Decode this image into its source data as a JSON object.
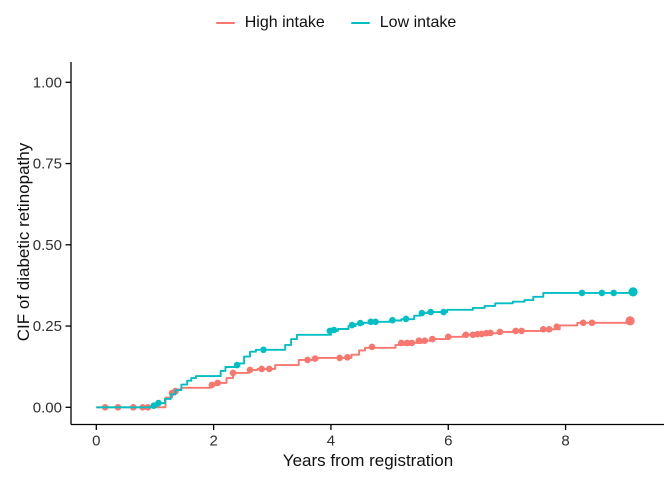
{
  "chart_data": {
    "type": "line",
    "subtype": "step-cumulative-incidence",
    "title": "",
    "xlabel": "Years from registration",
    "ylabel": "CIF of diabetic retinopathy",
    "xlim": [
      0,
      9.2
    ],
    "ylim": [
      0,
      1.0
    ],
    "x_ticks": [
      0,
      2,
      4,
      6,
      8
    ],
    "y_ticks": [
      0,
      0.25,
      0.5,
      0.75,
      1.0
    ],
    "y_tick_labels": [
      "0.00",
      "0.25",
      "0.50",
      "0.75",
      "1.00"
    ],
    "grid": false,
    "legend_position": "top-center",
    "axis_color": "#000000",
    "series": [
      {
        "name": "High intake",
        "color": "#F8766D",
        "steps": [
          [
            0,
            0
          ],
          [
            1.18,
            0.03
          ],
          [
            1.29,
            0.044
          ],
          [
            1.38,
            0.055
          ],
          [
            1.45,
            0.06
          ],
          [
            1.95,
            0.069
          ],
          [
            2.07,
            0.075
          ],
          [
            2.22,
            0.09
          ],
          [
            2.33,
            0.106
          ],
          [
            2.6,
            0.115
          ],
          [
            2.75,
            0.118
          ],
          [
            3.05,
            0.13
          ],
          [
            3.45,
            0.146
          ],
          [
            3.75,
            0.152
          ],
          [
            4.35,
            0.162
          ],
          [
            4.48,
            0.175
          ],
          [
            4.58,
            0.183
          ],
          [
            5.1,
            0.192
          ],
          [
            5.3,
            0.198
          ],
          [
            5.55,
            0.205
          ],
          [
            5.75,
            0.21
          ],
          [
            6.0,
            0.217
          ],
          [
            6.25,
            0.223
          ],
          [
            6.6,
            0.228
          ],
          [
            6.85,
            0.232
          ],
          [
            7.1,
            0.235
          ],
          [
            7.6,
            0.24
          ],
          [
            7.9,
            0.252
          ],
          [
            8.2,
            0.26
          ],
          [
            9.1,
            0.266
          ]
        ],
        "censor_marks": [
          [
            0.15,
            0
          ],
          [
            0.37,
            0
          ],
          [
            0.63,
            0
          ],
          [
            0.79,
            0
          ],
          [
            0.88,
            0
          ],
          [
            1.29,
            0.044
          ],
          [
            1.35,
            0.05
          ],
          [
            1.97,
            0.069
          ],
          [
            2.07,
            0.075
          ],
          [
            2.33,
            0.106
          ],
          [
            2.62,
            0.115
          ],
          [
            2.82,
            0.118
          ],
          [
            2.95,
            0.118
          ],
          [
            3.6,
            0.146
          ],
          [
            3.73,
            0.15
          ],
          [
            4.15,
            0.152
          ],
          [
            4.28,
            0.154
          ],
          [
            4.7,
            0.186
          ],
          [
            5.2,
            0.198
          ],
          [
            5.3,
            0.198
          ],
          [
            5.38,
            0.198
          ],
          [
            5.5,
            0.205
          ],
          [
            5.6,
            0.205
          ],
          [
            5.73,
            0.21
          ],
          [
            6.0,
            0.217
          ],
          [
            6.3,
            0.223
          ],
          [
            6.42,
            0.223
          ],
          [
            6.5,
            0.225
          ],
          [
            6.57,
            0.226
          ],
          [
            6.65,
            0.228
          ],
          [
            6.72,
            0.229
          ],
          [
            6.88,
            0.232
          ],
          [
            7.15,
            0.235
          ],
          [
            7.25,
            0.235
          ],
          [
            7.62,
            0.24
          ],
          [
            7.72,
            0.24
          ],
          [
            7.85,
            0.248
          ],
          [
            8.3,
            0.26
          ],
          [
            8.45,
            0.26
          ]
        ],
        "endpoint": [
          9.1,
          0.266
        ]
      },
      {
        "name": "Low intake",
        "color": "#00BFC4",
        "steps": [
          [
            0,
            0
          ],
          [
            0.95,
            0.005
          ],
          [
            1.05,
            0.013
          ],
          [
            1.17,
            0.026
          ],
          [
            1.27,
            0.04
          ],
          [
            1.35,
            0.053
          ],
          [
            1.45,
            0.07
          ],
          [
            1.55,
            0.082
          ],
          [
            1.62,
            0.09
          ],
          [
            1.7,
            0.096
          ],
          [
            2.12,
            0.112
          ],
          [
            2.2,
            0.124
          ],
          [
            2.42,
            0.135
          ],
          [
            2.52,
            0.156
          ],
          [
            2.62,
            0.171
          ],
          [
            2.72,
            0.177
          ],
          [
            3.22,
            0.192
          ],
          [
            3.32,
            0.21
          ],
          [
            3.42,
            0.223
          ],
          [
            4.0,
            0.235
          ],
          [
            4.12,
            0.241
          ],
          [
            4.3,
            0.25
          ],
          [
            4.42,
            0.256
          ],
          [
            4.55,
            0.26
          ],
          [
            4.68,
            0.263
          ],
          [
            5.0,
            0.267
          ],
          [
            5.2,
            0.271
          ],
          [
            5.42,
            0.282
          ],
          [
            5.52,
            0.29
          ],
          [
            5.65,
            0.293
          ],
          [
            5.98,
            0.3
          ],
          [
            6.42,
            0.306
          ],
          [
            6.62,
            0.312
          ],
          [
            6.8,
            0.32
          ],
          [
            7.1,
            0.325
          ],
          [
            7.3,
            0.33
          ],
          [
            7.45,
            0.34
          ],
          [
            7.62,
            0.352
          ],
          [
            9.15,
            0.355
          ]
        ],
        "censor_marks": [
          [
            0.98,
            0.005
          ],
          [
            1.06,
            0.013
          ],
          [
            2.4,
            0.13
          ],
          [
            2.85,
            0.177
          ],
          [
            3.98,
            0.235
          ],
          [
            4.05,
            0.238
          ],
          [
            4.36,
            0.253
          ],
          [
            4.5,
            0.259
          ],
          [
            4.68,
            0.263
          ],
          [
            4.76,
            0.263
          ],
          [
            5.05,
            0.268
          ],
          [
            5.28,
            0.272
          ],
          [
            5.55,
            0.29
          ],
          [
            5.7,
            0.293
          ],
          [
            5.92,
            0.293
          ],
          [
            8.28,
            0.352
          ],
          [
            8.62,
            0.352
          ],
          [
            8.82,
            0.352
          ]
        ],
        "endpoint": [
          9.15,
          0.355
        ]
      }
    ]
  }
}
